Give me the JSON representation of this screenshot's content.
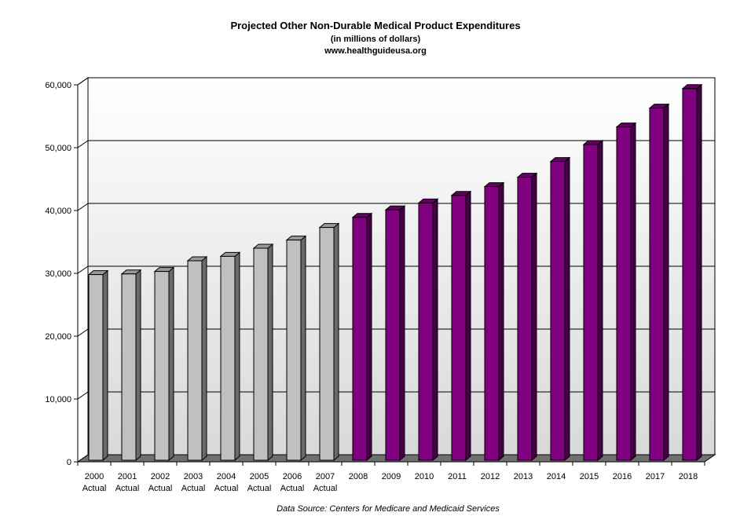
{
  "chart_data": {
    "type": "bar",
    "title": "Projected Other Non-Durable Medical Product Expenditures",
    "subtitle": "(in millions of dollars)",
    "website": "www.healthguideusa.org",
    "source": "Data Source: Centers for Medicare and Medicaid Services",
    "categories": [
      "2000",
      "2001",
      "2002",
      "2003",
      "2004",
      "2005",
      "2006",
      "2007",
      "2008",
      "2009",
      "2010",
      "2011",
      "2012",
      "2013",
      "2014",
      "2015",
      "2016",
      "2017",
      "2018"
    ],
    "category_sublabels": [
      "Actual",
      "Actual",
      "Actual",
      "Actual",
      "Actual",
      "Actual",
      "Actual",
      "Actual",
      "",
      "",
      "",
      "",
      "",
      "",
      "",
      "",
      "",
      "",
      ""
    ],
    "values": [
      29800,
      29900,
      30300,
      32000,
      32700,
      34000,
      35300,
      37300,
      38900,
      40100,
      41200,
      42400,
      43800,
      45300,
      47800,
      50500,
      53300,
      56300,
      59400
    ],
    "ylim": [
      0,
      60000
    ],
    "yticks": [
      0,
      10000,
      20000,
      30000,
      40000,
      50000,
      60000
    ],
    "ytick_labels": [
      "0",
      "10,000",
      "20,000",
      "30,000",
      "40,000",
      "50,000",
      "60,000"
    ],
    "grid": true,
    "colors": {
      "actual": "#c0c0c0",
      "projected": "#800080"
    }
  }
}
